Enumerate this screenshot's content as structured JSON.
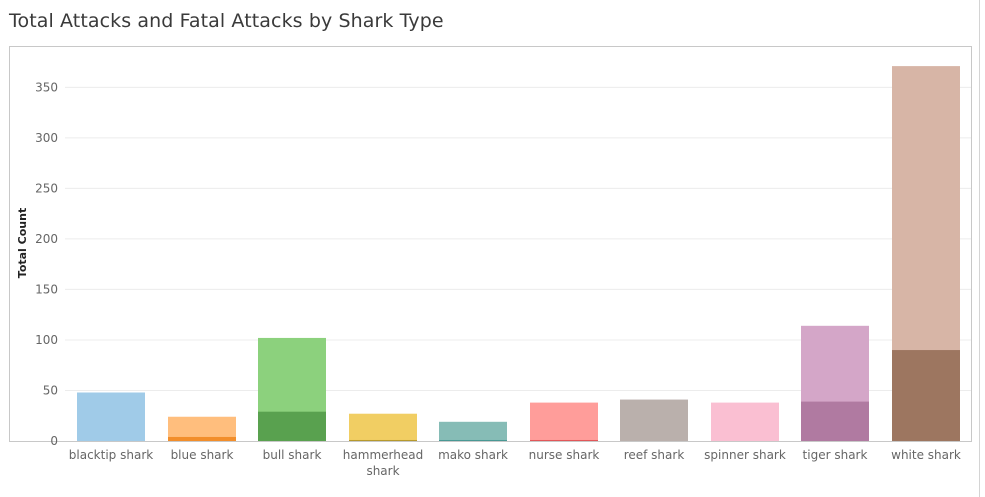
{
  "header": {
    "title": "Total Attacks and Fatal Attacks by Shark Type"
  },
  "chart_data": {
    "type": "bar",
    "title": "Total Attacks and Fatal Attacks by Shark Type",
    "xlabel": "",
    "ylabel": "Total Count",
    "ylim": [
      0,
      372
    ],
    "yticks": [
      0,
      50,
      100,
      150,
      200,
      250,
      300,
      350
    ],
    "grid": true,
    "categories": [
      "blacktip shark",
      "blue shark",
      "bull shark",
      "hammerhead shark",
      "mako shark",
      "nurse shark",
      "reef shark",
      "spinner shark",
      "tiger shark",
      "white shark"
    ],
    "category_labels": [
      [
        "blacktip shark"
      ],
      [
        "blue shark"
      ],
      [
        "bull shark"
      ],
      [
        "hammerhead",
        "shark"
      ],
      [
        "mako shark"
      ],
      [
        "nurse shark"
      ],
      [
        "reef shark"
      ],
      [
        "spinner shark"
      ],
      [
        "tiger shark"
      ],
      [
        "white shark"
      ]
    ],
    "series": [
      {
        "values": [
          48,
          24,
          102,
          27,
          19,
          38,
          41,
          38,
          114,
          371
        ]
      },
      {
        "values": [
          0,
          4,
          29,
          1,
          1,
          1,
          0,
          0,
          39,
          90
        ]
      }
    ],
    "colors": {
      "total": [
        "#a0cbe8",
        "#ffbe7d",
        "#8cd17d",
        "#f1ce63",
        "#86bcb6",
        "#ff9d9a",
        "#bab0ac",
        "#fabfd2",
        "#d4a6c8",
        "#d7b5a6"
      ],
      "fatal": [
        "#4e79a7",
        "#f28e2b",
        "#59a14f",
        "#b6992d",
        "#499894",
        "#e15759",
        "#79706e",
        "#d37295",
        "#b07aa1",
        "#9d7660"
      ]
    }
  }
}
